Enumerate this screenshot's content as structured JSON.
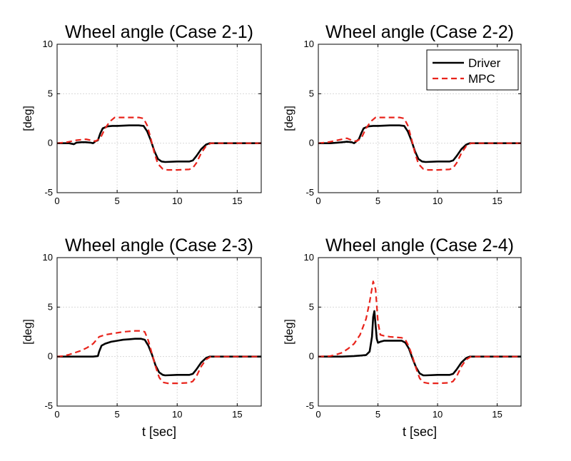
{
  "chart_data": [
    {
      "type": "line",
      "title": "Wheel angle (Case 2-1)",
      "xlabel": "",
      "ylabel": "[deg]",
      "xlim": [
        0,
        17
      ],
      "ylim": [
        -5,
        10
      ],
      "xticks": [
        0,
        5,
        10,
        15
      ],
      "yticks": [
        -5,
        0,
        5,
        10
      ],
      "grid": true,
      "legend": null,
      "series": [
        {
          "name": "Driver",
          "color": "#000000",
          "style": "solid",
          "x": [
            0,
            1,
            1.4,
            1.6,
            2,
            2.4,
            2.8,
            3.0,
            3.2,
            3.4,
            3.6,
            3.8,
            4.2,
            4.6,
            5,
            6,
            6.8,
            7.2,
            7.5,
            7.8,
            8.1,
            8.4,
            8.7,
            9,
            10,
            11,
            11.3,
            11.6,
            12,
            12.4,
            12.7,
            13,
            15,
            17
          ],
          "y": [
            0,
            0,
            -0.1,
            0.05,
            0.1,
            0.1,
            0.05,
            0,
            0.2,
            0.3,
            1.0,
            1.5,
            1.7,
            1.75,
            1.75,
            1.8,
            1.8,
            1.75,
            1.2,
            0.3,
            -0.8,
            -1.6,
            -1.85,
            -1.9,
            -1.85,
            -1.85,
            -1.75,
            -1.3,
            -0.6,
            -0.15,
            0,
            0,
            0,
            0
          ]
        },
        {
          "name": "MPC",
          "color": "#e8231b",
          "style": "dashed",
          "x": [
            0,
            0.8,
            1.2,
            1.6,
            2,
            2.4,
            2.8,
            3.2,
            3.6,
            4,
            4.4,
            4.8,
            5.2,
            6,
            6.8,
            7.2,
            7.5,
            7.8,
            8.1,
            8.4,
            8.8,
            9.2,
            10,
            11,
            11.3,
            11.6,
            12,
            12.4,
            12.8,
            13,
            15,
            17
          ],
          "y": [
            0,
            0.1,
            0.2,
            0.3,
            0.35,
            0.4,
            0.3,
            0.2,
            0.5,
            1.5,
            2.2,
            2.6,
            2.6,
            2.6,
            2.6,
            2.5,
            1.8,
            0.5,
            -1.0,
            -2.1,
            -2.6,
            -2.7,
            -2.7,
            -2.65,
            -2.5,
            -2.0,
            -1.0,
            -0.3,
            0,
            0,
            0,
            0
          ]
        }
      ]
    },
    {
      "type": "line",
      "title": "Wheel angle (Case 2-2)",
      "xlabel": "",
      "ylabel": "[deg]",
      "xlim": [
        0,
        17
      ],
      "ylim": [
        -5,
        10
      ],
      "xticks": [
        0,
        5,
        10,
        15
      ],
      "yticks": [
        -5,
        0,
        5,
        10
      ],
      "grid": true,
      "legend": {
        "placement": "top-right",
        "entries": [
          "Driver",
          "MPC"
        ]
      },
      "series": [
        {
          "name": "Driver",
          "color": "#000000",
          "style": "solid",
          "x": [
            0,
            1,
            1.6,
            2,
            2.4,
            2.8,
            3.0,
            3.2,
            3.4,
            3.6,
            3.8,
            4.2,
            4.6,
            5,
            6,
            6.8,
            7.2,
            7.5,
            7.8,
            8.1,
            8.4,
            8.7,
            9,
            10,
            11,
            11.3,
            11.6,
            12,
            12.4,
            12.7,
            13,
            15,
            17
          ],
          "y": [
            0,
            0,
            0.05,
            0.1,
            0.15,
            0.1,
            0,
            0.2,
            0.4,
            1.0,
            1.5,
            1.7,
            1.75,
            1.75,
            1.8,
            1.8,
            1.75,
            1.2,
            0.3,
            -0.8,
            -1.6,
            -1.85,
            -1.9,
            -1.85,
            -1.85,
            -1.75,
            -1.3,
            -0.6,
            -0.15,
            0,
            0,
            0,
            0
          ]
        },
        {
          "name": "MPC",
          "color": "#e8231b",
          "style": "dashed",
          "x": [
            0,
            0.8,
            1.2,
            1.6,
            2,
            2.4,
            2.8,
            3.2,
            3.6,
            4,
            4.4,
            4.8,
            5.2,
            6,
            6.8,
            7.2,
            7.5,
            7.8,
            8.1,
            8.4,
            8.8,
            9.2,
            10,
            11,
            11.3,
            11.6,
            12,
            12.4,
            12.8,
            13,
            15,
            17
          ],
          "y": [
            0,
            0.1,
            0.2,
            0.3,
            0.4,
            0.5,
            0.3,
            0.2,
            0.5,
            1.5,
            2.2,
            2.6,
            2.6,
            2.6,
            2.6,
            2.5,
            1.8,
            0.5,
            -1.0,
            -2.1,
            -2.6,
            -2.7,
            -2.7,
            -2.65,
            -2.5,
            -2.0,
            -1.0,
            -0.3,
            0,
            0,
            0,
            0
          ]
        }
      ]
    },
    {
      "type": "line",
      "title": "Wheel angle (Case 2-3)",
      "xlabel": "t [sec]",
      "ylabel": "[deg]",
      "xlim": [
        0,
        17
      ],
      "ylim": [
        -5,
        10
      ],
      "xticks": [
        0,
        5,
        10,
        15
      ],
      "yticks": [
        -5,
        0,
        5,
        10
      ],
      "grid": true,
      "legend": null,
      "series": [
        {
          "name": "Driver",
          "color": "#000000",
          "style": "solid",
          "x": [
            0,
            1,
            2,
            3,
            3.4,
            3.5,
            3.7,
            4,
            4.5,
            5,
            5.5,
            6,
            6.5,
            7,
            7.3,
            7.6,
            7.9,
            8.2,
            8.5,
            8.8,
            9,
            10,
            11,
            11.3,
            11.6,
            12,
            12.4,
            12.7,
            13,
            15,
            17
          ],
          "y": [
            0,
            0,
            0,
            0,
            0.05,
            0.5,
            1.1,
            1.3,
            1.5,
            1.6,
            1.7,
            1.75,
            1.8,
            1.8,
            1.7,
            1.1,
            0.2,
            -0.9,
            -1.6,
            -1.85,
            -1.9,
            -1.85,
            -1.85,
            -1.75,
            -1.3,
            -0.6,
            -0.15,
            0,
            0,
            0,
            0
          ]
        },
        {
          "name": "MPC",
          "color": "#e8231b",
          "style": "dashed",
          "x": [
            0,
            0.5,
            1,
            1.5,
            2,
            2.5,
            3,
            3.5,
            4,
            4.5,
            5,
            5.5,
            6,
            6.5,
            7,
            7.3,
            7.6,
            7.9,
            8.2,
            8.5,
            8.8,
            9.2,
            10,
            11,
            11.3,
            11.6,
            12,
            12.4,
            12.8,
            13,
            15,
            17
          ],
          "y": [
            0,
            0.05,
            0.2,
            0.4,
            0.6,
            0.9,
            1.3,
            2.0,
            2.2,
            2.3,
            2.4,
            2.5,
            2.55,
            2.6,
            2.6,
            2.5,
            1.6,
            0.3,
            -1.0,
            -2.1,
            -2.6,
            -2.7,
            -2.7,
            -2.65,
            -2.5,
            -2.0,
            -1.0,
            -0.3,
            0,
            0,
            0,
            0
          ]
        }
      ]
    },
    {
      "type": "line",
      "title": "Wheel angle (Case 2-4)",
      "xlabel": "t [sec]",
      "ylabel": "[deg]",
      "xlim": [
        0,
        17
      ],
      "ylim": [
        -5,
        10
      ],
      "xticks": [
        0,
        5,
        10,
        15
      ],
      "yticks": [
        -5,
        0,
        5,
        10
      ],
      "grid": true,
      "legend": null,
      "series": [
        {
          "name": "Driver",
          "color": "#000000",
          "style": "solid",
          "x": [
            0,
            1,
            2,
            3,
            4,
            4.3,
            4.5,
            4.6,
            4.7,
            4.8,
            4.9,
            5.0,
            5.2,
            5.5,
            6,
            6.5,
            7,
            7.3,
            7.6,
            7.9,
            8.2,
            8.5,
            8.8,
            9,
            10,
            11,
            11.3,
            11.6,
            12,
            12.4,
            12.7,
            13,
            15,
            17
          ],
          "y": [
            0,
            0,
            0,
            0.05,
            0.15,
            0.5,
            2.0,
            4.0,
            4.6,
            3.2,
            1.8,
            1.4,
            1.5,
            1.6,
            1.6,
            1.6,
            1.6,
            1.4,
            0.8,
            -0.2,
            -1.1,
            -1.7,
            -1.9,
            -1.9,
            -1.85,
            -1.85,
            -1.75,
            -1.3,
            -0.6,
            -0.15,
            0,
            0,
            0,
            0
          ]
        },
        {
          "name": "MPC",
          "color": "#e8231b",
          "style": "dashed",
          "x": [
            0,
            1,
            1.5,
            2,
            2.5,
            3,
            3.5,
            4,
            4.3,
            4.6,
            4.8,
            5.0,
            5.2,
            5.5,
            6,
            6.5,
            7,
            7.3,
            7.6,
            7.9,
            8.2,
            8.5,
            8.8,
            9.2,
            10,
            11,
            11.3,
            11.6,
            12,
            12.4,
            12.8,
            13,
            15,
            17
          ],
          "y": [
            0,
            0.05,
            0.2,
            0.4,
            0.8,
            1.3,
            2.2,
            3.8,
            5.5,
            7.6,
            6.8,
            3.5,
            2.2,
            2.1,
            2.0,
            1.95,
            1.9,
            1.7,
            1.0,
            0.0,
            -1.2,
            -2.2,
            -2.6,
            -2.7,
            -2.7,
            -2.65,
            -2.5,
            -2.0,
            -1.0,
            -0.3,
            0,
            0,
            0,
            0
          ]
        }
      ]
    }
  ]
}
